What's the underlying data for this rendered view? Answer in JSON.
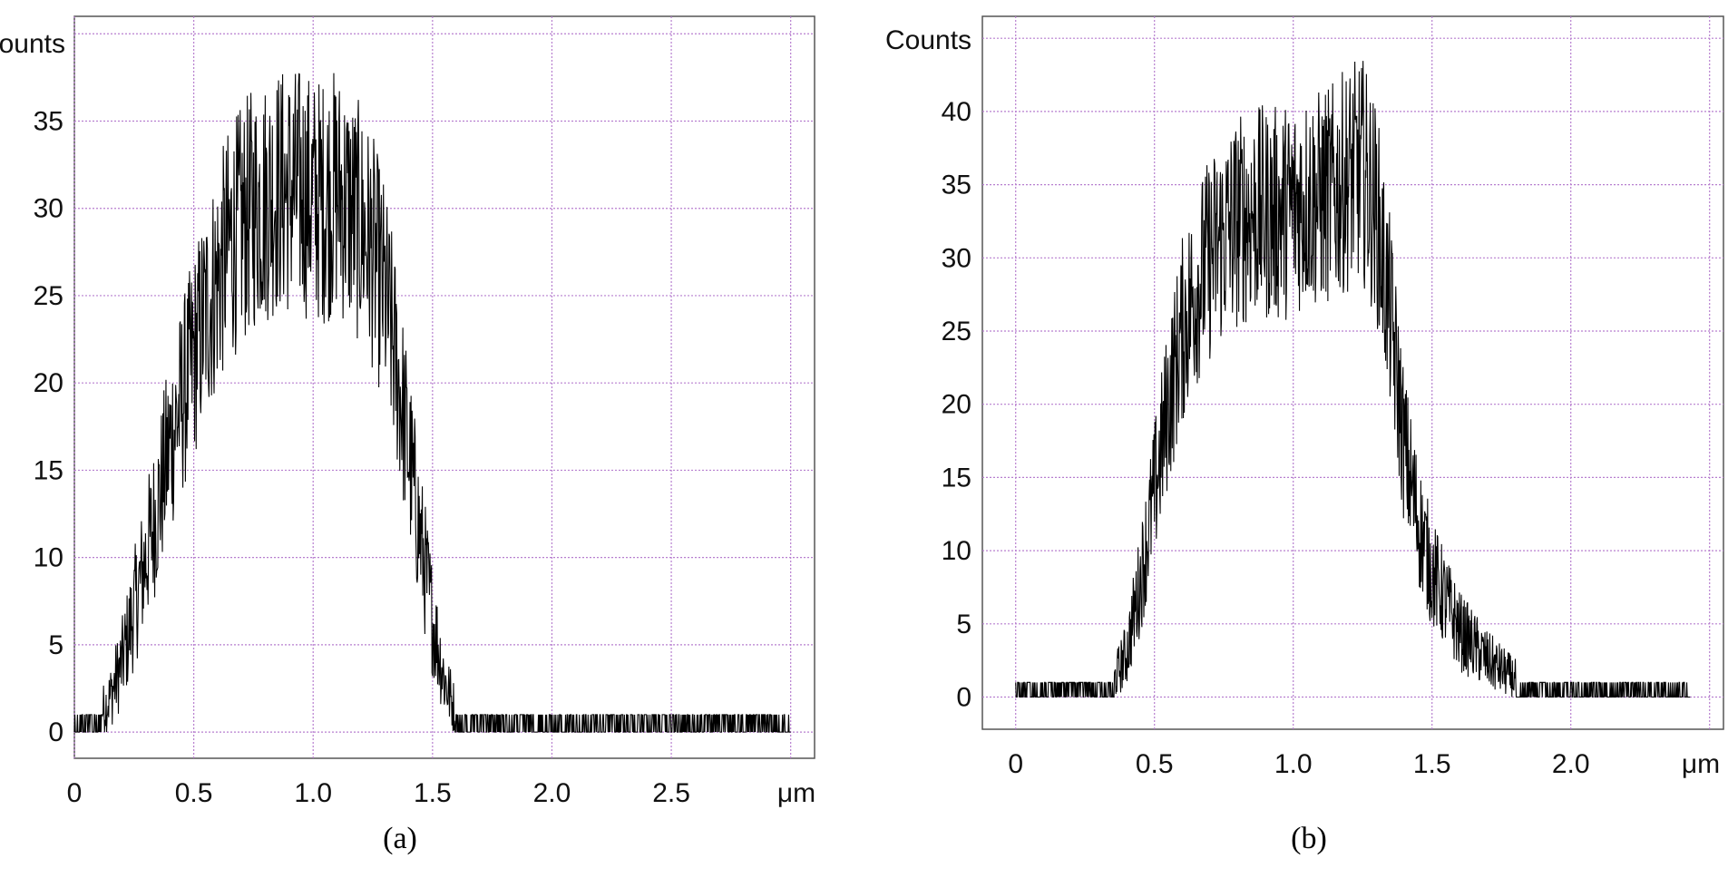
{
  "chart_data": [
    {
      "type": "line",
      "panel_label": "(a)",
      "ylabel": "Counts",
      "xunit": "μm",
      "xlim": [
        0,
        3.1
      ],
      "ylim": [
        -1.5,
        41
      ],
      "x_ticks": [
        0,
        0.5,
        1.0,
        1.5,
        2.0,
        2.5
      ],
      "x_tick_labels": [
        "0",
        "0.5",
        "1.0",
        "1.5",
        "2.0",
        "2.5"
      ],
      "y_ticks": [
        0,
        5,
        10,
        15,
        20,
        25,
        30,
        35
      ],
      "y_tick_labels": [
        "0",
        "5",
        "10",
        "15",
        "20",
        "25",
        "30",
        "35"
      ],
      "grid": true,
      "grid_color": "#b77fcf",
      "line_color": "#000000",
      "series": [
        {
          "x": [
            0.0,
            0.1,
            0.15,
            0.2,
            0.25,
            0.3,
            0.35,
            0.4,
            0.45,
            0.5,
            0.55,
            0.6,
            0.65,
            0.7,
            0.75,
            0.8,
            0.85,
            0.9,
            0.95,
            1.0,
            1.05,
            1.1,
            1.15,
            1.2,
            1.25,
            1.3,
            1.35,
            1.4,
            1.45,
            1.5,
            1.55,
            1.6,
            1.65,
            1.7,
            1.8,
            2.0,
            2.2,
            2.4,
            2.6,
            2.8,
            3.0
          ],
          "y": [
            0.5,
            0.8,
            2,
            4,
            7,
            10,
            13,
            16.5,
            19,
            21.5,
            24,
            26,
            28,
            29,
            30,
            30.5,
            31,
            31,
            31,
            30.5,
            30.5,
            31,
            30,
            29,
            27.5,
            25,
            21,
            16,
            11,
            6.5,
            3,
            1,
            0.4,
            0.3,
            0.3,
            0.3,
            0.3,
            0.3,
            0.3,
            0.3,
            0.3
          ]
        }
      ]
    },
    {
      "type": "line",
      "panel_label": "(b)",
      "ylabel": "Counts",
      "xunit": "μm",
      "xlim": [
        -0.12,
        2.55
      ],
      "ylim": [
        -2.2,
        46.5
      ],
      "x_ticks": [
        0,
        0.5,
        1.0,
        1.5,
        2.0
      ],
      "x_tick_labels": [
        "0",
        "0.5",
        "1.0",
        "1.5",
        "2.0"
      ],
      "y_ticks": [
        0,
        5,
        10,
        15,
        20,
        25,
        30,
        35,
        40
      ],
      "y_tick_labels": [
        "0",
        "5",
        "10",
        "15",
        "20",
        "25",
        "30",
        "35",
        "40"
      ],
      "grid": true,
      "grid_color": "#b77fcf",
      "line_color": "#000000",
      "series": [
        {
          "x": [
            0.0,
            0.1,
            0.2,
            0.3,
            0.35,
            0.4,
            0.45,
            0.5,
            0.55,
            0.6,
            0.65,
            0.7,
            0.75,
            0.8,
            0.85,
            0.9,
            0.95,
            1.0,
            1.05,
            1.1,
            1.15,
            1.2,
            1.25,
            1.3,
            1.35,
            1.4,
            1.45,
            1.5,
            1.55,
            1.6,
            1.7,
            1.8,
            1.9,
            2.0,
            2.1,
            2.2,
            2.3,
            2.43
          ],
          "y": [
            0,
            0.3,
            0.5,
            0.6,
            1,
            3,
            8,
            14,
            20,
            25,
            28,
            30,
            31.5,
            32.5,
            33,
            33,
            33,
            33.5,
            34,
            34,
            34.5,
            35.5,
            36,
            33,
            26,
            17,
            12,
            8.5,
            6.5,
            4.5,
            2.5,
            1.2,
            0.6,
            0.4,
            0.3,
            0.3,
            0.2,
            0
          ]
        }
      ]
    }
  ]
}
